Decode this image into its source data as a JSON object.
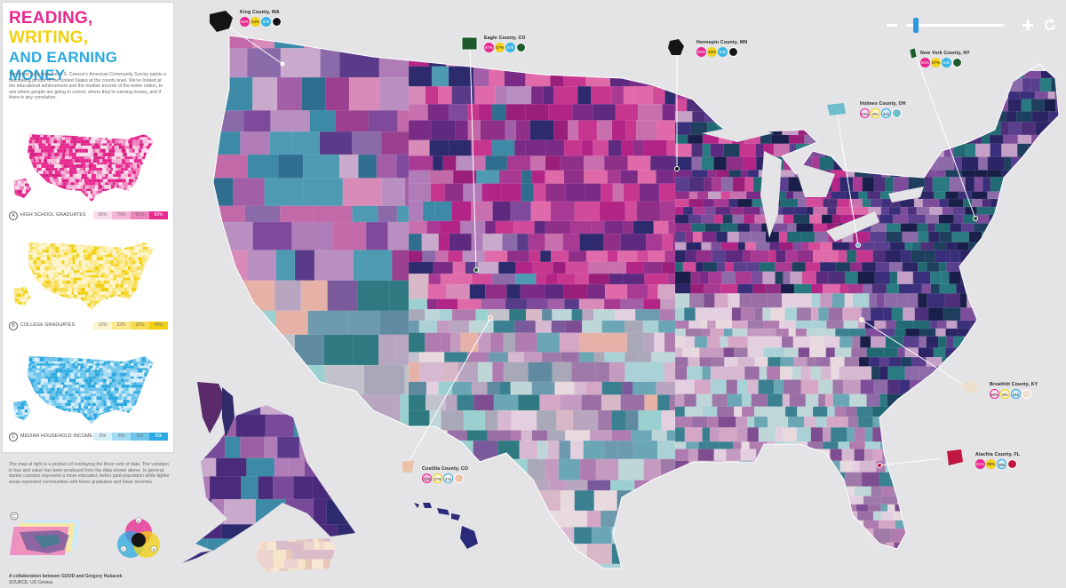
{
  "title": {
    "line1": "Reading,",
    "line2": "Writing,",
    "line3": "and Earning Money",
    "colors": {
      "line1": "#e8278f",
      "line2": "#f2d00f",
      "line3": "#2aa9e0"
    }
  },
  "intro": "The latest data from the U.S. Census's American Community Survey paints a fascinating picture of the United States at the county level. We've looked at the educational achievement and the median income of the entire nation, to see where people are going to school, where they're earning money, and if there is any correlation.",
  "legends": [
    {
      "number": "A",
      "label": "High School Graduates",
      "values": [
        "65%",
        "75%",
        "82%",
        "89%"
      ],
      "color": "#e8278f"
    },
    {
      "number": "B",
      "label": "College Graduates",
      "values": [
        "15%",
        "22%",
        "30%",
        "40%"
      ],
      "color": "#f2d00f"
    },
    {
      "number": "C",
      "label": "Median Household Income",
      "values": [
        "25k",
        "40k",
        "50k",
        "65k"
      ],
      "color": "#2aa9e0"
    }
  ],
  "note": "The map at right is a product of overlaying the three sets of data. The variation in hue and value has been produced from the data shown above. In general, darker counties represent a more educated, better paid population while lighter areas represent communities with fewer graduates and lower incomes.",
  "diagram": {
    "labels": [
      "C",
      "A",
      "B"
    ]
  },
  "credit": "A collaboration between GOOD and Gregory Hubacek",
  "source": "SOURCE: US Census",
  "zoom": {
    "minus_icon": "minus-icon",
    "plus_icon": "plus-icon",
    "reset_icon": "refresh-icon",
    "level": 0.07
  },
  "counties": [
    {
      "name": "King County, WA",
      "values": [
        "93%",
        "44%",
        "67k"
      ],
      "swatch": "#1a1a1a"
    },
    {
      "name": "Eagle County, CO",
      "values": [
        "87%",
        "47%",
        "67k"
      ],
      "swatch": "#1f5a2c"
    },
    {
      "name": "Hennepin County, MN",
      "values": [
        "92%",
        "43%",
        "63k"
      ],
      "swatch": "#1a1a1a"
    },
    {
      "name": "New York County, NY",
      "values": [
        "84%",
        "57%",
        "64k"
      ],
      "swatch": "#1f5a2c"
    },
    {
      "name": "Holmes County, OH",
      "values": [
        "54%",
        "9%",
        "41k"
      ],
      "swatch": "#6fbccc"
    },
    {
      "name": "Breathitt County, KY",
      "values": [
        "60%",
        "9%",
        "21k"
      ],
      "swatch": "#ece1cf"
    },
    {
      "name": "Alachia County, FL",
      "values": [
        "91%",
        "39%",
        "39k"
      ],
      "swatch": "#c0163f"
    },
    {
      "name": "Costilla County, CO",
      "values": [
        "71%",
        "17%",
        "21k"
      ],
      "swatch": "#ecc2a8"
    }
  ]
}
